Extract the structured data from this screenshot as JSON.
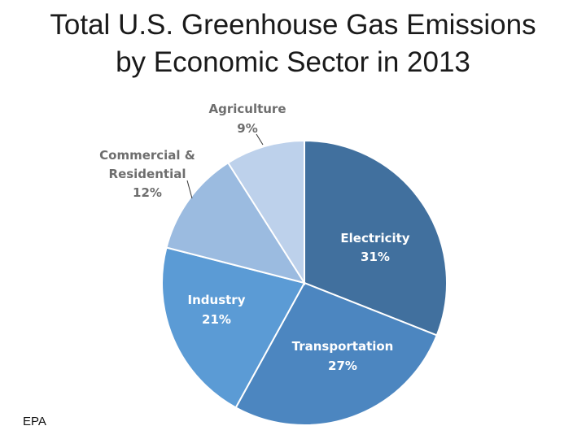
{
  "title": {
    "line1": "Total U.S. Greenhouse Gas Emissions",
    "line2": "by Economic Sector in 2013"
  },
  "source": "EPA",
  "colors": {
    "label_inside": "#ffffff",
    "label_outside": "#6e6e6e",
    "leader": "#333333",
    "slice_edge": "#ffffff"
  },
  "chart_data": {
    "type": "pie",
    "title": "Total U.S. Greenhouse Gas Emissions by Economic Sector in 2013",
    "start_angle_deg": 0,
    "direction": "clockwise",
    "slices": [
      {
        "name": "Electricity",
        "value": 31,
        "label": "31%",
        "color": "#41709e",
        "label_position": "inside"
      },
      {
        "name": "Transportation",
        "value": 27,
        "label": "27%",
        "color": "#4c86c0",
        "label_position": "inside"
      },
      {
        "name": "Industry",
        "value": 21,
        "label": "21%",
        "color": "#5b9bd5",
        "label_position": "inside"
      },
      {
        "name": "Commercial & Residential",
        "value": 12,
        "label": "12%",
        "color": "#9bbbe0",
        "label_position": "outside"
      },
      {
        "name": "Agriculture",
        "value": 9,
        "label": "9%",
        "color": "#bdd1eb",
        "label_position": "outside"
      }
    ]
  }
}
